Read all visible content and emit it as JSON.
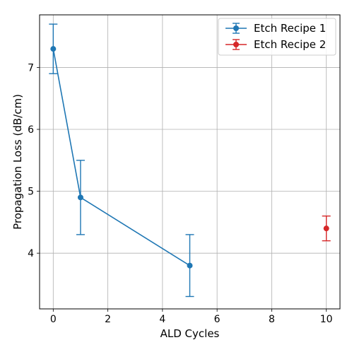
{
  "chart_data": {
    "type": "line",
    "title": "",
    "xlabel": "ALD Cycles",
    "ylabel": "Propagation Loss (dB/cm)",
    "xlim": [
      -0.5,
      10.5
    ],
    "ylim": [
      3.1,
      7.85
    ],
    "xticks": [
      0,
      2,
      4,
      6,
      8,
      10
    ],
    "yticks": [
      4,
      5,
      6,
      7
    ],
    "grid": true,
    "legend_position": "top-right",
    "series": [
      {
        "name": "Etch Recipe 1",
        "color": "#1f77b4",
        "x": [
          0,
          1,
          5
        ],
        "y": [
          7.3,
          4.9,
          3.8
        ],
        "yerr": [
          0.4,
          0.6,
          0.5
        ]
      },
      {
        "name": "Etch Recipe 2",
        "color": "#d62728",
        "x": [
          10
        ],
        "y": [
          4.4
        ],
        "yerr": [
          0.2
        ]
      }
    ]
  }
}
